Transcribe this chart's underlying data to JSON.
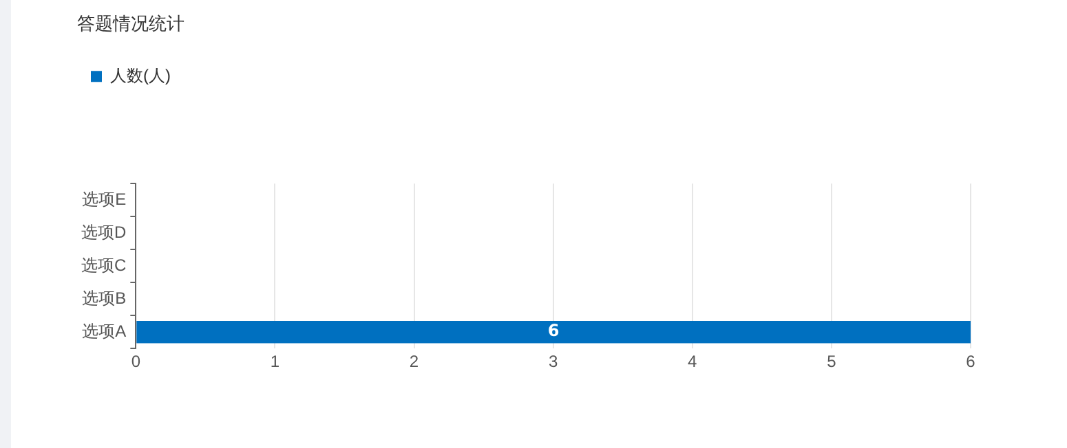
{
  "chart_data": {
    "type": "bar",
    "orientation": "horizontal",
    "title": "答题情况统计",
    "categories": [
      "选项E",
      "选项D",
      "选项C",
      "选项B",
      "选项A"
    ],
    "series": [
      {
        "name": "人数(人)",
        "color": "#0070c0",
        "values": [
          0,
          0,
          0,
          0,
          6
        ],
        "value_labels": [
          null,
          null,
          null,
          null,
          "6"
        ]
      }
    ],
    "xlim": [
      0,
      6
    ],
    "xticks": [
      0,
      1,
      2,
      3,
      4,
      5,
      6
    ],
    "grid": "x",
    "legend": "top left"
  }
}
